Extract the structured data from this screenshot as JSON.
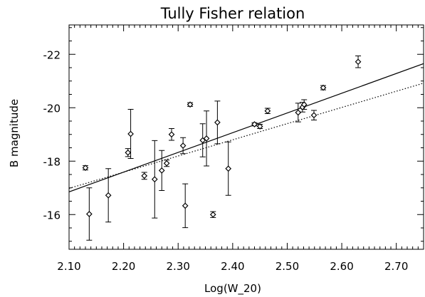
{
  "chart_data": {
    "type": "scatter",
    "title": "Tully Fisher relation",
    "xlabel": "Log(W_20)",
    "ylabel": "B magnitude",
    "xlim": [
      2.1,
      2.75
    ],
    "ylim": [
      -14.7,
      -23.1
    ],
    "y_axis_inverted": true,
    "grid": false,
    "xticks": [
      "2.10",
      "2.20",
      "2.30",
      "2.40",
      "2.50",
      "2.60",
      "2.70"
    ],
    "yticks": [
      "-22",
      "-20",
      "-18",
      "-16"
    ],
    "colors": {
      "line": "#000000",
      "points": "#000000"
    },
    "points": [
      {
        "x": 2.13,
        "y": -17.75,
        "err": 0.08
      },
      {
        "x": 2.137,
        "y": -16.02,
        "err": 0.98
      },
      {
        "x": 2.172,
        "y": -16.72,
        "err": 1.0
      },
      {
        "x": 2.208,
        "y": -18.32,
        "err": 0.15
      },
      {
        "x": 2.213,
        "y": -19.02,
        "err": 0.92
      },
      {
        "x": 2.238,
        "y": -17.45,
        "err": 0.13
      },
      {
        "x": 2.257,
        "y": -17.32,
        "err": 1.45
      },
      {
        "x": 2.27,
        "y": -17.65,
        "err": 0.75
      },
      {
        "x": 2.279,
        "y": -17.92,
        "err": 0.12
      },
      {
        "x": 2.288,
        "y": -19.0,
        "err": 0.22
      },
      {
        "x": 2.309,
        "y": -18.58,
        "err": 0.3
      },
      {
        "x": 2.313,
        "y": -16.33,
        "err": 0.82
      },
      {
        "x": 2.322,
        "y": -20.12,
        "err": 0.07
      },
      {
        "x": 2.345,
        "y": -18.78,
        "err": 0.62
      },
      {
        "x": 2.352,
        "y": -18.85,
        "err": 1.03
      },
      {
        "x": 2.364,
        "y": -16.0,
        "err": 0.11
      },
      {
        "x": 2.372,
        "y": -19.45,
        "err": 0.8
      },
      {
        "x": 2.392,
        "y": -17.72,
        "err": 1.0
      },
      {
        "x": 2.44,
        "y": -19.38,
        "err": 0.06
      },
      {
        "x": 2.45,
        "y": -19.3,
        "err": 0.08
      },
      {
        "x": 2.464,
        "y": -19.88,
        "err": 0.1
      },
      {
        "x": 2.52,
        "y": -19.82,
        "err": 0.35
      },
      {
        "x": 2.528,
        "y": -20.02,
        "err": 0.18
      },
      {
        "x": 2.531,
        "y": -20.12,
        "err": 0.18
      },
      {
        "x": 2.549,
        "y": -19.72,
        "err": 0.18
      },
      {
        "x": 2.566,
        "y": -20.75,
        "err": 0.08
      },
      {
        "x": 2.63,
        "y": -21.72,
        "err": 0.22
      }
    ],
    "lines": [
      {
        "style": "solid",
        "x": [
          2.1,
          2.75
        ],
        "y": [
          -16.85,
          -21.65
        ]
      },
      {
        "style": "dotted",
        "x": [
          2.1,
          2.75
        ],
        "y": [
          -16.98,
          -20.92
        ]
      }
    ]
  }
}
